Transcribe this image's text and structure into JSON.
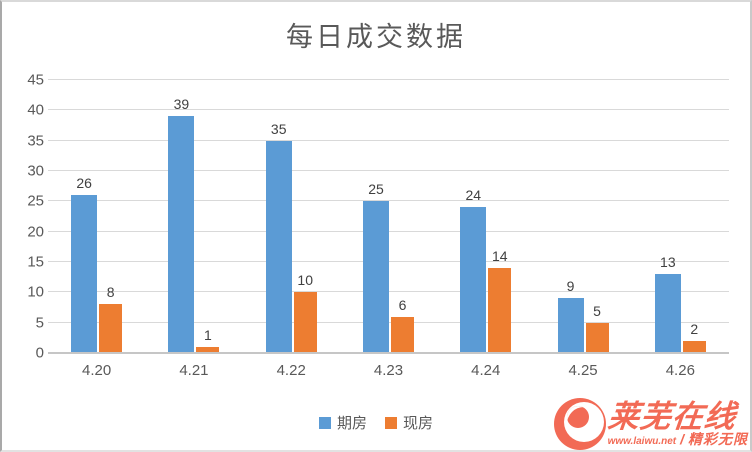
{
  "chart_data": {
    "type": "bar",
    "title": "每日成交数据",
    "categories": [
      "4.20",
      "4.21",
      "4.22",
      "4.23",
      "4.24",
      "4.25",
      "4.26"
    ],
    "series": [
      {
        "name": "期房",
        "color": "#5B9BD5",
        "values": [
          26,
          39,
          35,
          25,
          24,
          9,
          13
        ]
      },
      {
        "name": "现房",
        "color": "#ED7D31",
        "values": [
          8,
          1,
          10,
          6,
          14,
          5,
          2
        ]
      }
    ],
    "ylim": [
      0,
      45
    ],
    "ytick_step": 5,
    "yticks": [
      0,
      5,
      10,
      15,
      20,
      25,
      30,
      35,
      40,
      45
    ],
    "grid": true,
    "legend_position": "bottom"
  },
  "watermark": {
    "brand": "莱芜在线",
    "url": "www.laiwu.net",
    "slogan": "精彩无限",
    "color": "#f26a55"
  },
  "colors": {
    "title": "#595959",
    "tick_labels": "#595959",
    "data_labels": "#404040",
    "gridline": "#d9d9d9",
    "axis_line": "#c6c6c6"
  }
}
